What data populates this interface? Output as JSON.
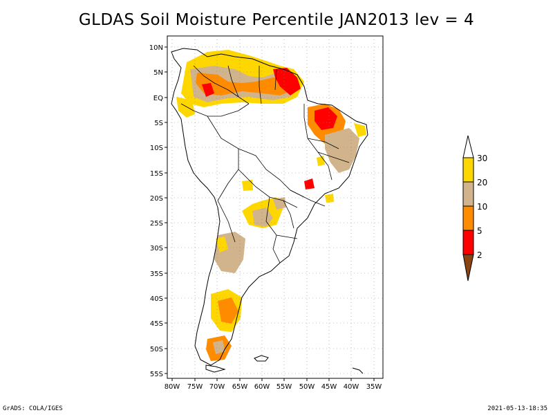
{
  "title": "GLDAS Soil Moisture Percentile JAN2013 lev = 4",
  "footer_left": "GrADS: COLA/IGES",
  "footer_right": "2021-05-13-18:35",
  "map": {
    "region": "South America",
    "lon_range": [
      -80,
      -32
    ],
    "lat_range": [
      -56,
      12
    ],
    "lat_ticks": [
      "10N",
      "5N",
      "EQ",
      "5S",
      "10S",
      "15S",
      "20S",
      "25S",
      "30S",
      "35S",
      "40S",
      "45S",
      "50S",
      "55S"
    ],
    "lon_ticks": [
      "80W",
      "75W",
      "70W",
      "65W",
      "60W",
      "55W",
      "50W",
      "45W",
      "40W",
      "35W"
    ],
    "grid": "dotted"
  },
  "colorbar": {
    "labels": [
      "30",
      "20",
      "10",
      "5",
      "2"
    ],
    "colors": [
      "#ffffff",
      "#ffd700",
      "#d2b48c",
      "#ff8c00",
      "#ff0000",
      "#8b4513"
    ]
  }
}
